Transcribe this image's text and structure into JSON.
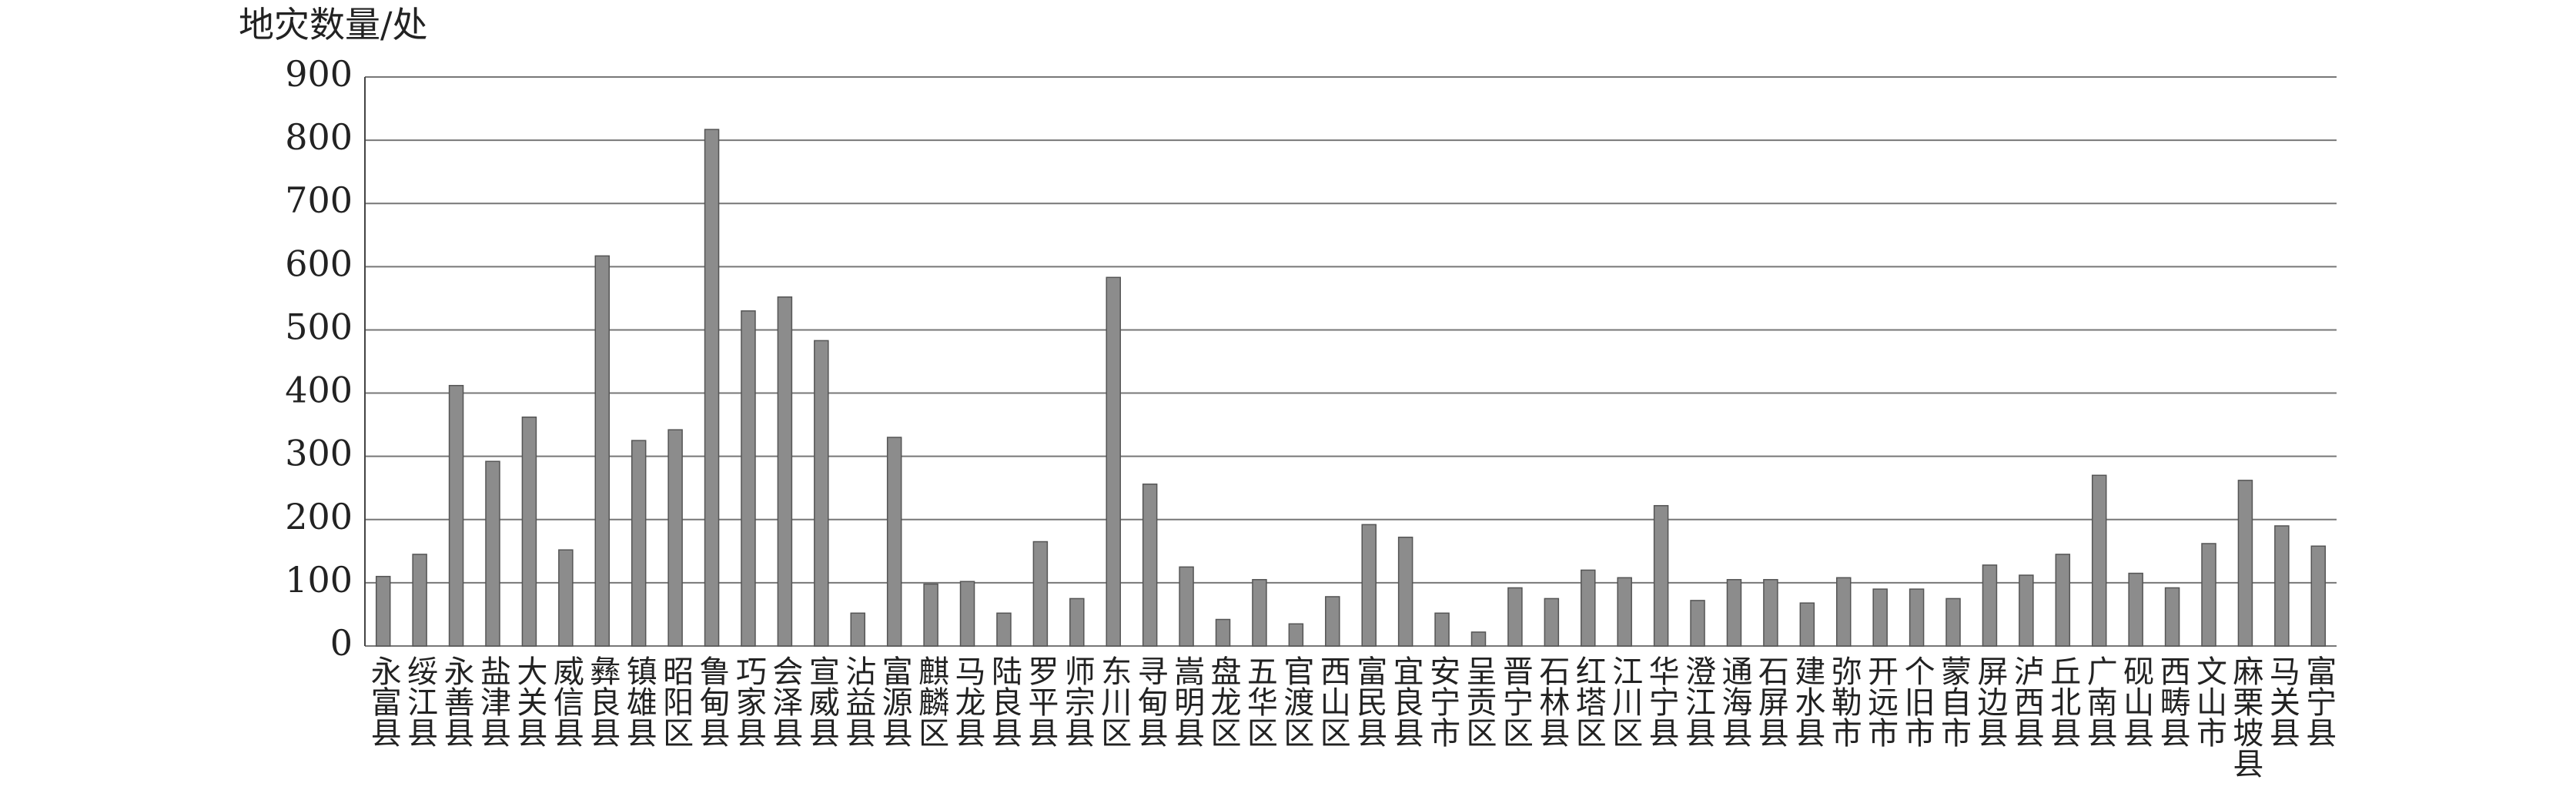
{
  "chart_data": {
    "type": "bar",
    "y_label": "地灾数量/处",
    "categories": [
      "永富县",
      "绥江县",
      "永善县",
      "盐津县",
      "大关县",
      "威信县",
      "彝良县",
      "镇雄县",
      "昭阳区",
      "鲁甸县",
      "巧家县",
      "会泽县",
      "宣威县",
      "沾益县",
      "富源县",
      "麒麟区",
      "马龙县",
      "陆良县",
      "罗平县",
      "师宗县",
      "东川区",
      "寻甸县",
      "嵩明县",
      "盘龙区",
      "五华区",
      "官渡区",
      "西山区",
      "富民县",
      "宜良县",
      "安宁市",
      "呈贡区",
      "晋宁区",
      "石林县",
      "红塔区",
      "江川区",
      "华宁县",
      "澄江县",
      "通海县",
      "石屏县",
      "建水县",
      "弥勒市",
      "开远市",
      "个旧市",
      "蒙自市",
      "屏边县",
      "泸西县",
      "丘北县",
      "广南县",
      "砚山县",
      "西畴县",
      "文山市",
      "麻栗坡县",
      "马关县",
      "富宁县"
    ],
    "values": [
      110,
      145,
      412,
      292,
      362,
      152,
      617,
      325,
      342,
      817,
      530,
      552,
      483,
      52,
      330,
      98,
      102,
      52,
      165,
      75,
      583,
      256,
      125,
      42,
      105,
      35,
      78,
      192,
      172,
      52,
      22,
      92,
      75,
      120,
      108,
      222,
      72,
      105,
      105,
      68,
      108,
      90,
      90,
      75,
      128,
      112,
      145,
      270,
      115,
      92,
      162,
      262,
      190,
      158
    ],
    "color": "#8c8c8c",
    "ylim": [
      0,
      900
    ],
    "yticks": [
      0,
      100,
      200,
      300,
      400,
      500,
      600,
      700,
      800,
      900
    ],
    "grid": true
  }
}
